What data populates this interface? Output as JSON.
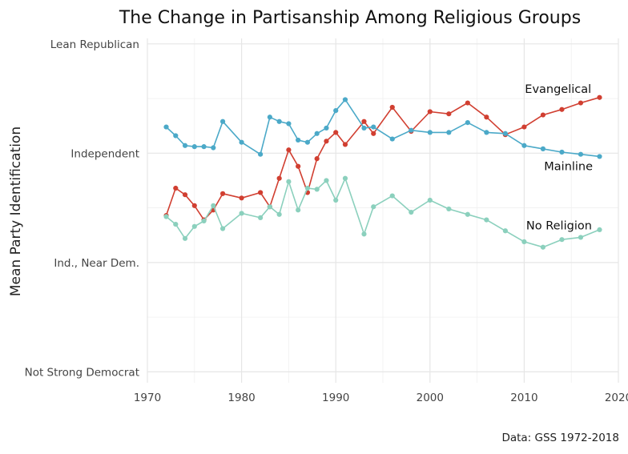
{
  "chart_data": {
    "type": "line",
    "title": "The Change in Partisanship Among Religious Groups",
    "ylabel": "Mean Party Identification",
    "xlabel": "",
    "caption": "Data: GSS 1972-2018",
    "xlim": [
      1970,
      2020
    ],
    "ylim": [
      -2.1,
      1.05
    ],
    "x_ticks": [
      1970,
      1980,
      1990,
      2000,
      2010,
      2020
    ],
    "x_tick_labels": [
      "1970",
      "1980",
      "1990",
      "2000",
      "2010",
      "2020"
    ],
    "y_ticks": [
      -2,
      -1,
      0,
      1
    ],
    "y_tick_labels": [
      "Not Strong Democrat",
      "Ind., Near Dem.",
      "Independent",
      "Lean Republican"
    ],
    "grid": true,
    "legend": "none",
    "series": [
      {
        "name": "Evangelical",
        "color": "#d13f31",
        "x": [
          1972,
          1973,
          1974,
          1975,
          1976,
          1977,
          1978,
          1980,
          1982,
          1983,
          1984,
          1985,
          1986,
          1987,
          1988,
          1989,
          1990,
          1991,
          1993,
          1994,
          1996,
          1998,
          2000,
          2002,
          2004,
          2006,
          2008,
          2010,
          2012,
          2014,
          2016,
          2018
        ],
        "y": [
          -0.57,
          -0.32,
          -0.38,
          -0.48,
          -0.61,
          -0.52,
          -0.37,
          -0.41,
          -0.36,
          -0.49,
          -0.23,
          0.03,
          -0.12,
          -0.36,
          -0.05,
          0.11,
          0.19,
          0.08,
          0.29,
          0.18,
          0.42,
          0.2,
          0.38,
          0.36,
          0.46,
          0.33,
          0.17,
          0.24,
          0.35,
          0.4,
          0.46,
          0.51
        ]
      },
      {
        "name": "Mainline",
        "color": "#4ba9c8",
        "x": [
          1972,
          1973,
          1974,
          1975,
          1976,
          1977,
          1978,
          1980,
          1982,
          1983,
          1984,
          1985,
          1986,
          1987,
          1988,
          1989,
          1990,
          1991,
          1993,
          1994,
          1996,
          1998,
          2000,
          2002,
          2004,
          2006,
          2008,
          2010,
          2012,
          2014,
          2016,
          2018
        ],
        "y": [
          0.24,
          0.16,
          0.07,
          0.06,
          0.06,
          0.05,
          0.29,
          0.1,
          -0.01,
          0.33,
          0.29,
          0.27,
          0.12,
          0.1,
          0.18,
          0.23,
          0.39,
          0.49,
          0.23,
          0.24,
          0.13,
          0.21,
          0.19,
          0.19,
          0.28,
          0.19,
          0.18,
          0.07,
          0.04,
          0.01,
          -0.01,
          -0.03
        ]
      },
      {
        "name": "No Religion",
        "color": "#8bd0bd",
        "x": [
          1972,
          1973,
          1974,
          1975,
          1976,
          1977,
          1978,
          1980,
          1982,
          1983,
          1984,
          1985,
          1986,
          1987,
          1988,
          1989,
          1990,
          1991,
          1993,
          1994,
          1996,
          1998,
          2000,
          2002,
          2004,
          2006,
          2008,
          2010,
          2012,
          2014,
          2016,
          2018
        ],
        "y": [
          -0.58,
          -0.65,
          -0.78,
          -0.67,
          -0.62,
          -0.48,
          -0.69,
          -0.55,
          -0.59,
          -0.49,
          -0.56,
          -0.26,
          -0.52,
          -0.32,
          -0.33,
          -0.25,
          -0.43,
          -0.23,
          -0.74,
          -0.49,
          -0.39,
          -0.54,
          -0.43,
          -0.51,
          -0.56,
          -0.61,
          -0.71,
          -0.81,
          -0.86,
          -0.79,
          -0.77,
          -0.7
        ]
      }
    ],
    "annotations": [
      {
        "text": "Evangelical",
        "x": 2013.6,
        "y": 0.59
      },
      {
        "text": "Mainline",
        "x": 2014.7,
        "y": -0.12
      },
      {
        "text": "No Religion",
        "x": 2013.7,
        "y": -0.66
      }
    ]
  }
}
